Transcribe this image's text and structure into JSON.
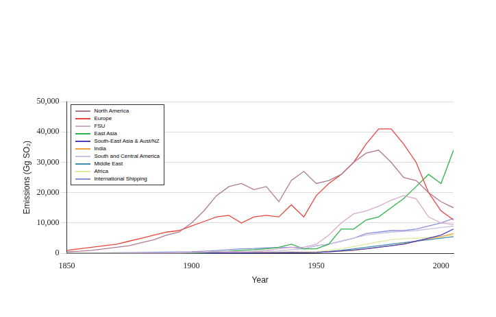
{
  "chart_data": {
    "type": "line",
    "x_label": "Year",
    "y_label": "Emissions (Gg SO₂)",
    "x": [
      1850,
      1855,
      1860,
      1865,
      1870,
      1875,
      1880,
      1885,
      1890,
      1895,
      1900,
      1905,
      1910,
      1915,
      1920,
      1925,
      1930,
      1935,
      1940,
      1945,
      1950,
      1955,
      1960,
      1965,
      1970,
      1975,
      1980,
      1985,
      1990,
      1995,
      2000,
      2005
    ],
    "series": [
      {
        "name": "North America",
        "color": "#b07a8e",
        "values": [
          500,
          700,
          1000,
          1500,
          2000,
          2500,
          3500,
          4500,
          6000,
          7000,
          10000,
          14000,
          19000,
          22000,
          23000,
          21000,
          22000,
          17000,
          24000,
          27000,
          23000,
          24000,
          26000,
          30000,
          33000,
          34000,
          30000,
          25000,
          24000,
          20000,
          17000,
          15000
        ]
      },
      {
        "name": "Europe",
        "color": "#e8453c",
        "values": [
          1000,
          1500,
          2000,
          2500,
          3000,
          4000,
          5000,
          6000,
          7000,
          7500,
          9000,
          10500,
          12000,
          12500,
          10000,
          12000,
          12500,
          12000,
          16000,
          12000,
          19000,
          23000,
          26000,
          30000,
          36000,
          41000,
          41000,
          36000,
          30000,
          20000,
          14000,
          11000
        ]
      },
      {
        "name": "FSU",
        "color": "#d8a8cc",
        "values": [
          0,
          0,
          0,
          0,
          0,
          50,
          100,
          100,
          150,
          200,
          300,
          400,
          500,
          600,
          500,
          700,
          1000,
          1500,
          2000,
          2000,
          3000,
          6000,
          10000,
          13000,
          14000,
          15500,
          17500,
          19000,
          18000,
          12000,
          10000,
          9500
        ]
      },
      {
        "name": "East Asia",
        "color": "#2db34a",
        "values": [
          0,
          0,
          0,
          0,
          0,
          0,
          0,
          0,
          50,
          100,
          200,
          300,
          500,
          700,
          1000,
          1200,
          1500,
          2000,
          3000,
          1500,
          1500,
          3000,
          8000,
          8000,
          11000,
          12000,
          15000,
          18000,
          22000,
          26000,
          23000,
          34000
        ]
      },
      {
        "name": "South-East Asia & Aust/NZ",
        "color": "#4b3fbf",
        "values": [
          0,
          0,
          0,
          0,
          0,
          0,
          0,
          0,
          0,
          0,
          50,
          100,
          100,
          150,
          150,
          200,
          200,
          250,
          300,
          250,
          300,
          500,
          800,
          1100,
          1500,
          2000,
          2500,
          3000,
          4000,
          5000,
          6000,
          8000
        ]
      },
      {
        "name": "India",
        "color": "#f0a040",
        "values": [
          0,
          0,
          0,
          0,
          0,
          0,
          0,
          0,
          50,
          50,
          100,
          100,
          150,
          150,
          200,
          200,
          250,
          250,
          300,
          300,
          300,
          500,
          700,
          1000,
          1500,
          2000,
          2500,
          3200,
          4000,
          4800,
          5500,
          6500
        ]
      },
      {
        "name": "South and Central America",
        "color": "#c8c0e0",
        "values": [
          0,
          0,
          0,
          0,
          0,
          0,
          50,
          50,
          100,
          100,
          200,
          300,
          400,
          500,
          500,
          600,
          700,
          800,
          1200,
          1500,
          2500,
          3000,
          4000,
          5000,
          6000,
          6500,
          7000,
          7200,
          7500,
          8000,
          8500,
          9000
        ]
      },
      {
        "name": "Middle East",
        "color": "#3a8fb0",
        "values": [
          0,
          0,
          0,
          0,
          0,
          0,
          0,
          0,
          0,
          0,
          0,
          0,
          50,
          50,
          100,
          100,
          150,
          200,
          200,
          200,
          300,
          600,
          1000,
          1500,
          2000,
          2500,
          3000,
          3500,
          4000,
          4500,
          5000,
          5500
        ]
      },
      {
        "name": "Africa",
        "color": "#dfe89a",
        "values": [
          0,
          0,
          0,
          0,
          0,
          0,
          0,
          0,
          0,
          50,
          100,
          150,
          200,
          250,
          300,
          300,
          400,
          400,
          500,
          400,
          500,
          1000,
          1500,
          2200,
          3000,
          3800,
          4500,
          4800,
          5000,
          5200,
          5500,
          6000
        ]
      },
      {
        "name": "International Shipping",
        "color": "#8a90e0",
        "values": [
          0,
          50,
          100,
          150,
          200,
          250,
          300,
          350,
          400,
          450,
          500,
          700,
          900,
          1200,
          1500,
          1600,
          1800,
          1900,
          2000,
          1500,
          2500,
          3000,
          4000,
          5000,
          6500,
          7000,
          7500,
          7500,
          8000,
          9000,
          10000,
          11500
        ]
      }
    ],
    "xlim": [
      1850,
      2005
    ],
    "xticks": [
      1850,
      1900,
      1950,
      2000
    ],
    "ylim": [
      0,
      50000
    ],
    "yticks": [
      0,
      {
        "value": 10000,
        "label": "10,000"
      },
      {
        "value": 20000,
        "label": "20,000"
      },
      {
        "value": 30000,
        "label": "30,000"
      },
      {
        "value": 40000,
        "label": "40,000"
      },
      {
        "value": 50000,
        "label": "50,000"
      }
    ],
    "grid": true,
    "legend": "upper left"
  }
}
